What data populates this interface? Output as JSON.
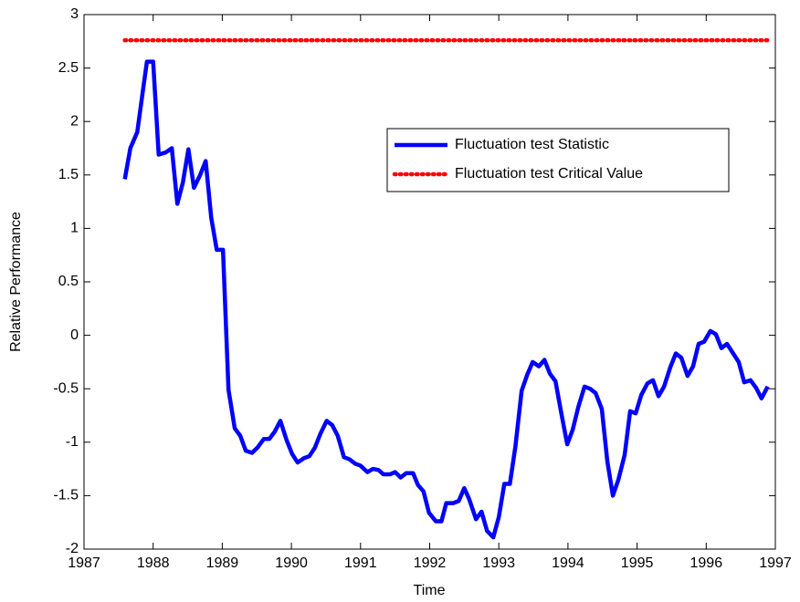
{
  "chart_data": {
    "type": "line",
    "xlabel": "Time",
    "ylabel": "Relative Performance",
    "xlim": [
      1987,
      1997
    ],
    "xticks": [
      1987,
      1988,
      1989,
      1990,
      1991,
      1992,
      1993,
      1994,
      1995,
      1996,
      1997
    ],
    "ylim": [
      -2,
      3
    ],
    "yticks": [
      3,
      2.5,
      2,
      1.5,
      1,
      0.5,
      0,
      -0.5,
      -1,
      -1.5,
      -2
    ],
    "legend": "upper right",
    "series": [
      {
        "name": "Fluctuation test Statistic",
        "color": "#0000ff",
        "style": "solid",
        "x": [
          1987.59,
          1987.67,
          1987.77,
          1987.85,
          1987.91,
          1988.0,
          1988.08,
          1988.18,
          1988.27,
          1988.35,
          1988.43,
          1988.51,
          1988.59,
          1988.68,
          1988.76,
          1988.84,
          1988.92,
          1989.01,
          1989.09,
          1989.18,
          1989.26,
          1989.34,
          1989.43,
          1989.51,
          1989.6,
          1989.68,
          1989.76,
          1989.84,
          1989.93,
          1990.01,
          1990.09,
          1990.18,
          1990.26,
          1990.34,
          1990.42,
          1990.51,
          1990.59,
          1990.67,
          1990.76,
          1990.84,
          1990.92,
          1991.0,
          1991.1,
          1991.18,
          1991.26,
          1991.33,
          1991.43,
          1991.5,
          1991.58,
          1991.66,
          1991.76,
          1991.83,
          1991.91,
          1991.99,
          1992.09,
          1992.17,
          1992.24,
          1992.34,
          1992.42,
          1992.5,
          1992.57,
          1992.67,
          1992.75,
          1992.83,
          1992.92,
          1993.0,
          1993.08,
          1993.16,
          1993.24,
          1993.33,
          1993.41,
          1993.49,
          1993.58,
          1993.66,
          1993.74,
          1993.82,
          1993.91,
          1993.99,
          1994.07,
          1994.15,
          1994.24,
          1994.32,
          1994.4,
          1994.49,
          1994.57,
          1994.65,
          1994.73,
          1994.82,
          1994.9,
          1994.98,
          1995.06,
          1995.15,
          1995.23,
          1995.31,
          1995.39,
          1995.48,
          1995.56,
          1995.64,
          1995.73,
          1995.81,
          1995.89,
          1995.97,
          1996.06,
          1996.14,
          1996.22,
          1996.3,
          1996.39,
          1996.47,
          1996.55,
          1996.64,
          1996.72,
          1996.8,
          1996.89
        ],
        "values": [
          1.46,
          1.75,
          1.9,
          2.28,
          2.56,
          2.56,
          1.69,
          1.71,
          1.75,
          1.23,
          1.43,
          1.74,
          1.38,
          1.5,
          1.63,
          1.1,
          0.8,
          0.8,
          -0.51,
          -0.87,
          -0.94,
          -1.08,
          -1.1,
          -1.05,
          -0.97,
          -0.97,
          -0.9,
          -0.8,
          -0.98,
          -1.11,
          -1.19,
          -1.15,
          -1.13,
          -1.05,
          -0.92,
          -0.8,
          -0.84,
          -0.94,
          -1.14,
          -1.16,
          -1.2,
          -1.22,
          -1.28,
          -1.25,
          -1.26,
          -1.3,
          -1.3,
          -1.28,
          -1.33,
          -1.29,
          -1.29,
          -1.4,
          -1.46,
          -1.66,
          -1.74,
          -1.74,
          -1.57,
          -1.57,
          -1.55,
          -1.43,
          -1.53,
          -1.72,
          -1.65,
          -1.83,
          -1.89,
          -1.7,
          -1.39,
          -1.39,
          -1.04,
          -0.52,
          -0.37,
          -0.25,
          -0.29,
          -0.23,
          -0.36,
          -0.43,
          -0.75,
          -1.02,
          -0.88,
          -0.67,
          -0.48,
          -0.5,
          -0.54,
          -0.69,
          -1.18,
          -1.5,
          -1.35,
          -1.12,
          -0.71,
          -0.73,
          -0.56,
          -0.45,
          -0.42,
          -0.57,
          -0.48,
          -0.3,
          -0.17,
          -0.21,
          -0.38,
          -0.29,
          -0.08,
          -0.06,
          0.04,
          0.01,
          -0.12,
          -0.08,
          -0.17,
          -0.25,
          -0.44,
          -0.42,
          -0.49,
          -0.59,
          -0.48
        ]
      },
      {
        "name": "Fluctuation test Critical Value",
        "color": "#ff0000",
        "style": "dotted",
        "x": [
          1987.59,
          1996.89
        ],
        "values": [
          2.76,
          2.76
        ]
      }
    ]
  }
}
